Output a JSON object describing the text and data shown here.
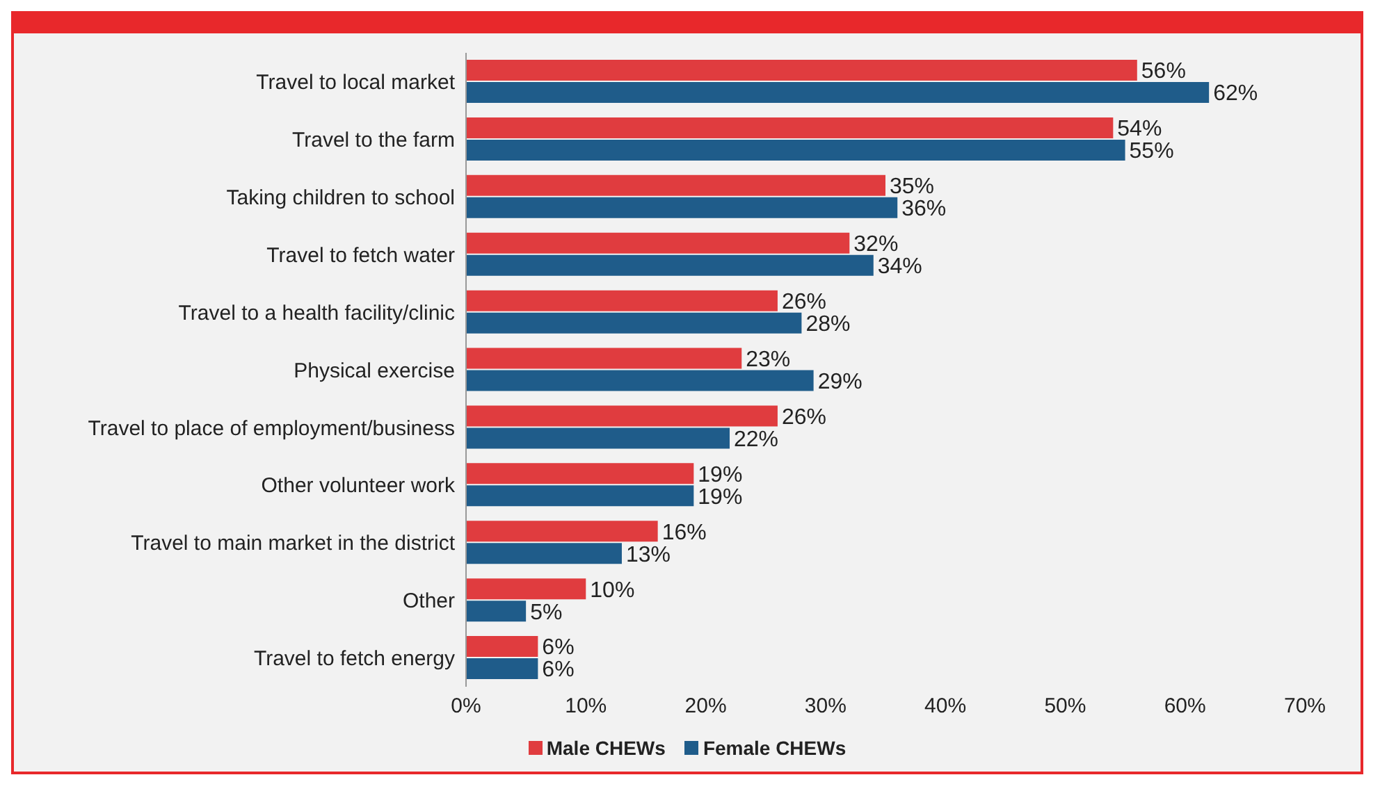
{
  "chart_data": {
    "type": "bar",
    "orientation": "horizontal",
    "categories": [
      "Travel to local market",
      "Travel to the farm",
      "Taking children to school",
      "Travel to fetch water",
      "Travel to a health facility/clinic",
      "Physical exercise",
      "Travel to place of employment/business",
      "Other volunteer work",
      "Travel to main market in the district",
      "Other",
      "Travel to fetch energy"
    ],
    "series": [
      {
        "name": "Male CHEWs",
        "color": "#e03c3f",
        "values": [
          56,
          54,
          35,
          32,
          26,
          23,
          26,
          19,
          16,
          10,
          6
        ],
        "value_labels": [
          "56%",
          "54%",
          "35%",
          "32%",
          "26%",
          "23%",
          "26%",
          "19%",
          "16%",
          "10%",
          "6%"
        ]
      },
      {
        "name": "Female CHEWs",
        "color": "#1f5c8a",
        "values": [
          62,
          55,
          36,
          34,
          28,
          29,
          22,
          19,
          13,
          5,
          6
        ],
        "value_labels": [
          "62%",
          "55%",
          "36%",
          "34%",
          "28%",
          "29%",
          "22%",
          "19%",
          "13%",
          "5%",
          "6%"
        ]
      }
    ],
    "xlim": [
      0,
      70
    ],
    "xticks": [
      {
        "value": 0,
        "label": "0%"
      },
      {
        "value": 10,
        "label": "10%"
      },
      {
        "value": 20,
        "label": "20%"
      },
      {
        "value": 30,
        "label": "30%"
      },
      {
        "value": 40,
        "label": "40%"
      },
      {
        "value": 50,
        "label": "50%"
      },
      {
        "value": 60,
        "label": "60%"
      },
      {
        "value": 70,
        "label": "70%"
      }
    ],
    "grid": false,
    "legend": "bottom"
  }
}
